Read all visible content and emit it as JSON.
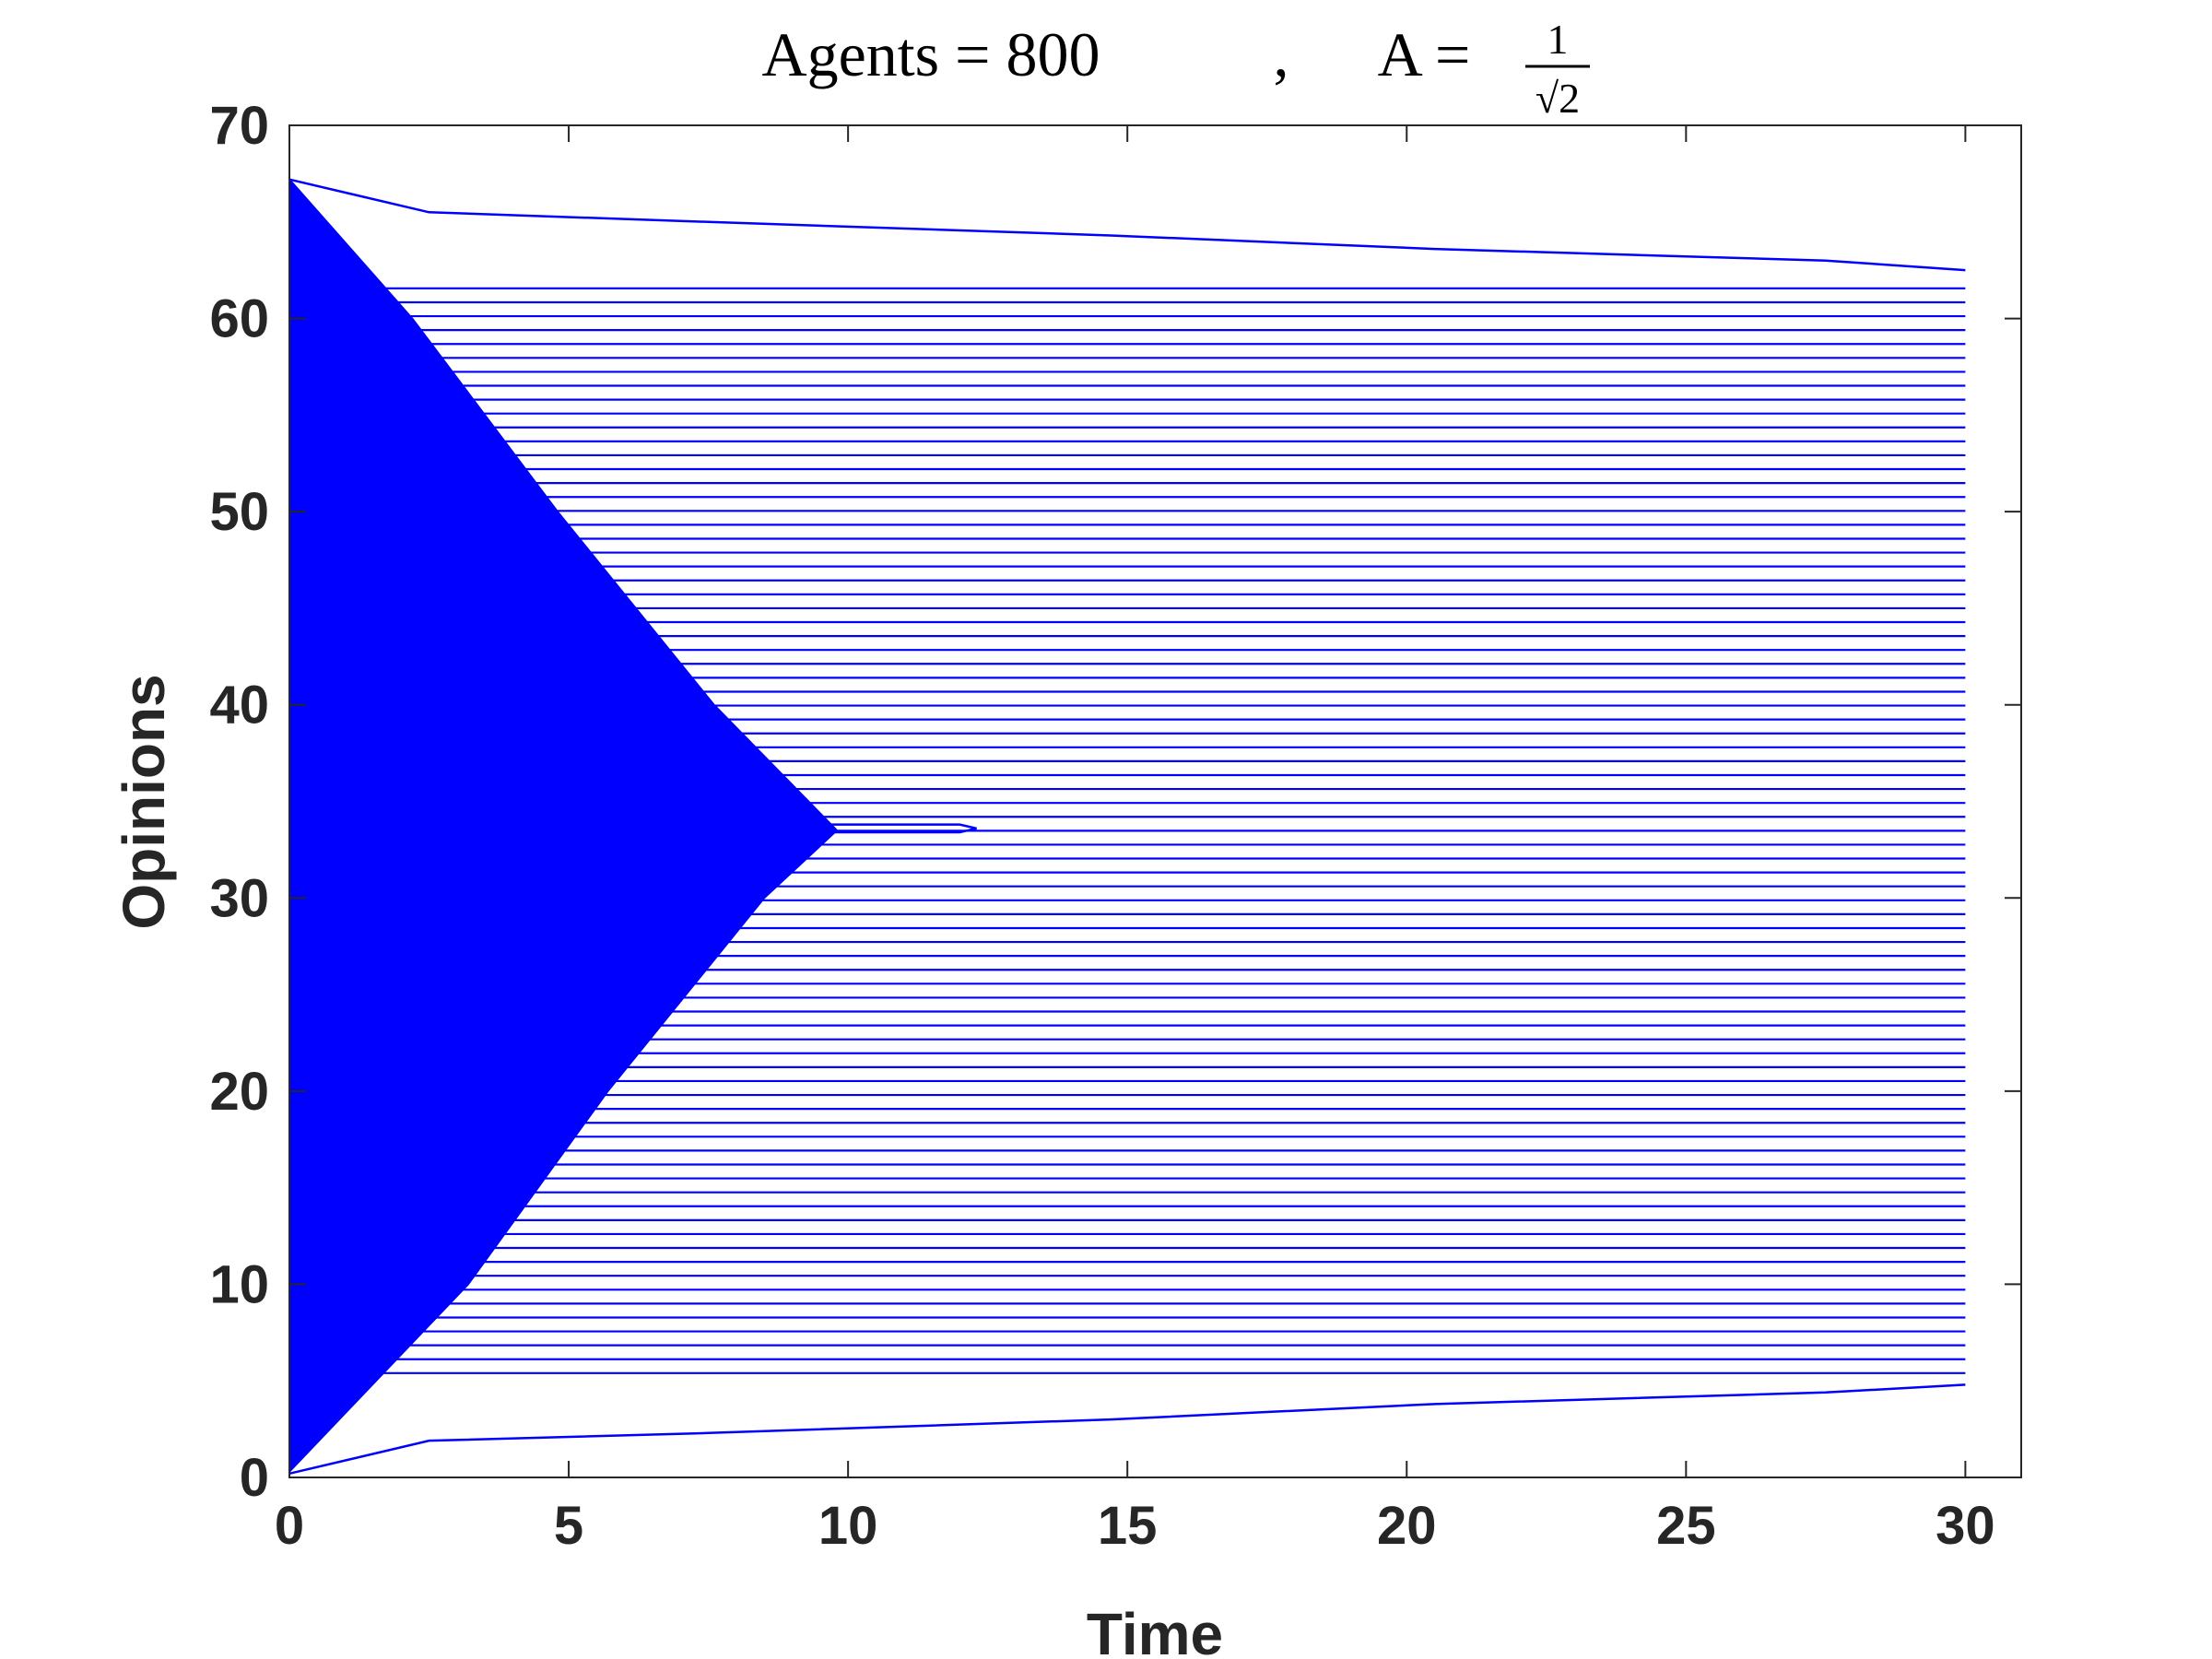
{
  "chart_data": {
    "type": "line",
    "title": {
      "left": "Agents = 800",
      "separator": ",",
      "right": "A =",
      "fraction_numerator": "1",
      "fraction_denominator": "√2"
    },
    "xlabel": "Time",
    "ylabel": "Opinions",
    "xlim": [
      0,
      31
    ],
    "ylim": [
      0,
      70
    ],
    "xticks": [
      0,
      5,
      10,
      15,
      20,
      25,
      30
    ],
    "yticks": [
      0,
      10,
      20,
      30,
      40,
      50,
      60,
      70
    ],
    "color": "#0000ff",
    "grid": false,
    "clusters": {
      "x": [
        0,
        30
      ],
      "levels": [
        5.4,
        6.12,
        6.84,
        7.56,
        8.28,
        9.0,
        9.72,
        10.44,
        11.16,
        11.88,
        12.6,
        13.32,
        14.04,
        14.76,
        15.48,
        16.2,
        16.92,
        17.64,
        18.36,
        19.08,
        19.8,
        20.52,
        21.24,
        21.96,
        22.68,
        23.4,
        24.12,
        24.84,
        25.56,
        26.28,
        27.0,
        27.72,
        28.44,
        29.16,
        29.88,
        30.6,
        31.32,
        32.04,
        32.76,
        33.48,
        34.2,
        34.92,
        35.64,
        36.36,
        37.08,
        37.8,
        38.52,
        39.24,
        39.96,
        40.68,
        41.4,
        42.12,
        42.84,
        43.56,
        44.28,
        45.0,
        45.72,
        46.44,
        47.16,
        47.88,
        48.6,
        49.32,
        50.04,
        50.76,
        51.48,
        52.2,
        52.92,
        53.64,
        54.36,
        55.08,
        55.8,
        56.52,
        57.24,
        57.96,
        58.68,
        59.4,
        60.12,
        60.84,
        61.56
      ]
    },
    "series": [
      {
        "x": [
          0,
          2.5,
          7.5,
          14.7,
          20.5,
          27.5,
          30
        ],
        "values": [
          67.2,
          65.5,
          65,
          64.3,
          63.6,
          63,
          62.5
        ]
      },
      {
        "x": [
          0,
          2.5,
          7.5,
          14.7,
          20.5,
          27.5,
          30
        ],
        "values": [
          0.2,
          1.9,
          2.3,
          3,
          3.8,
          4.4,
          4.8
        ]
      },
      {
        "x": [
          9.5,
          12,
          12.3,
          12,
          9.5
        ],
        "values": [
          33.8,
          33.8,
          33.6,
          33.4,
          33.4
        ]
      }
    ],
    "area": {
      "x": [
        0,
        2.2,
        4.8,
        7.6,
        9.8,
        8.5,
        5.7,
        3.2,
        0
      ],
      "values": [
        67.2,
        60,
        50,
        40,
        33.5,
        30,
        20,
        10,
        0.3
      ]
    }
  }
}
